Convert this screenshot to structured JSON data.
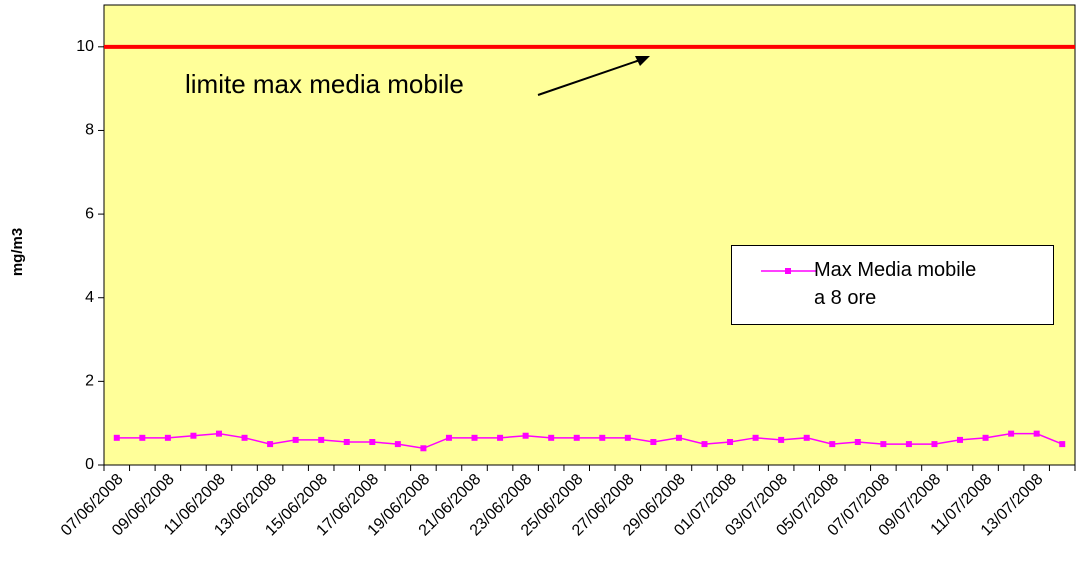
{
  "chart_data": {
    "type": "line",
    "y_label": "mg/m3",
    "categories": [
      "07/06/2008",
      null,
      "09/06/2008",
      null,
      "11/06/2008",
      null,
      "13/06/2008",
      null,
      "15/06/2008",
      null,
      "17/06/2008",
      null,
      "19/06/2008",
      null,
      "21/06/2008",
      null,
      "23/06/2008",
      null,
      "25/06/2008",
      null,
      "27/06/2008",
      null,
      "29/06/2008",
      null,
      "01/07/2008",
      null,
      "03/07/2008",
      null,
      "05/07/2008",
      null,
      "07/07/2008",
      null,
      "09/07/2008",
      null,
      "11/07/2008",
      null,
      "13/07/2008",
      null
    ],
    "series": [
      {
        "name": "Max Media mobile a 8 ore",
        "color": "#ff00ff",
        "values": [
          0.65,
          0.65,
          0.65,
          0.7,
          0.75,
          0.65,
          0.5,
          0.6,
          0.6,
          0.55,
          0.55,
          0.5,
          0.4,
          0.65,
          0.65,
          0.65,
          0.7,
          0.65,
          0.65,
          0.65,
          0.65,
          0.55,
          0.65,
          0.5,
          0.55,
          0.65,
          0.6,
          0.65,
          0.5,
          0.55,
          0.5,
          0.5,
          0.5,
          0.6,
          0.65,
          0.75,
          0.75,
          0.5
        ]
      }
    ],
    "reference_line": {
      "value": 10,
      "color": "#ff0000",
      "annotation": "limite max media mobile"
    },
    "ylim": [
      0,
      11
    ],
    "yticks": [
      0,
      2,
      4,
      6,
      8,
      10
    ],
    "plot_background": "#ffff99"
  }
}
